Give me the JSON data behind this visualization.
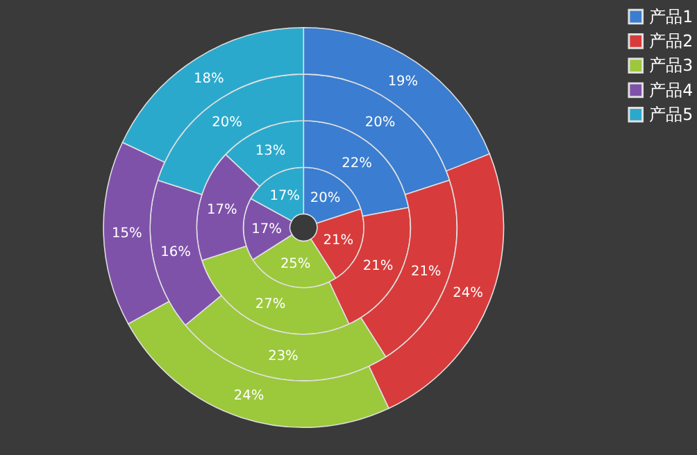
{
  "chart_data": {
    "type": "donut",
    "categories": [
      "产品1",
      "产品2",
      "产品3",
      "产品4",
      "产品5"
    ],
    "colors": [
      "#3b7dd0",
      "#d83b3b",
      "#9cc83c",
      "#7f52aa",
      "#2ba9cc"
    ],
    "series": [
      {
        "values": [
          20,
          21,
          25,
          17,
          17
        ],
        "value_labels": [
          "20%",
          "21%",
          "25%",
          "17%",
          "17%"
        ]
      },
      {
        "values": [
          22,
          21,
          27,
          17,
          13
        ],
        "value_labels": [
          "22%",
          "21%",
          "27%",
          "17%",
          "13%"
        ]
      },
      {
        "values": [
          20,
          21,
          23,
          16,
          20
        ],
        "value_labels": [
          "20%",
          "21%",
          "23%",
          "16%",
          "20%"
        ]
      },
      {
        "values": [
          19,
          24,
          24,
          15,
          18
        ],
        "value_labels": [
          "19%",
          "24%",
          "24%",
          "15%",
          "18%"
        ]
      }
    ],
    "legend": "right"
  }
}
